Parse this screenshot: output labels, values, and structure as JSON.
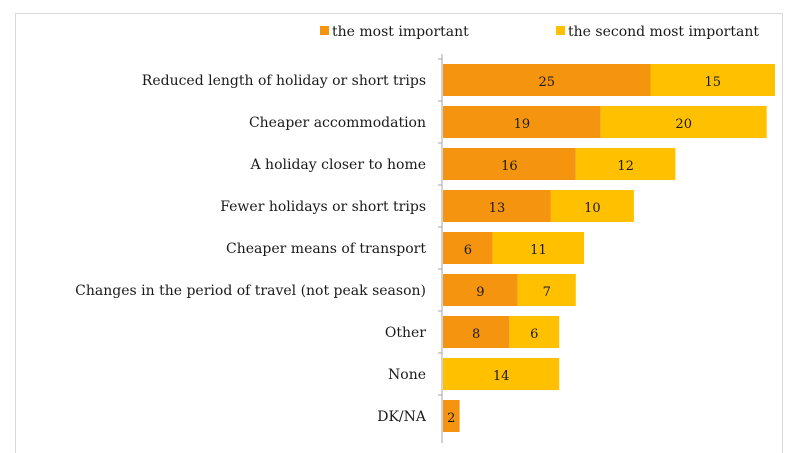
{
  "chart_data": {
    "type": "bar",
    "orientation": "horizontal",
    "stacked": true,
    "categories": [
      "Reduced length of holiday or short trips",
      "Cheaper accommodation",
      "A holiday closer to home",
      "Fewer holidays or short trips",
      "Cheaper means of transport",
      "Changes in the period of travel (not peak season)",
      "Other",
      "None",
      "DK/NA"
    ],
    "series": [
      {
        "name": "the most important",
        "color": "#f5940f",
        "values": [
          25,
          19,
          16,
          13,
          6,
          9,
          8,
          null,
          2
        ]
      },
      {
        "name": "the second most important",
        "color": "#ffc000",
        "values": [
          15,
          20,
          12,
          10,
          11,
          7,
          6,
          14,
          null
        ]
      }
    ],
    "legend_position": "top-right",
    "grid": false
  }
}
